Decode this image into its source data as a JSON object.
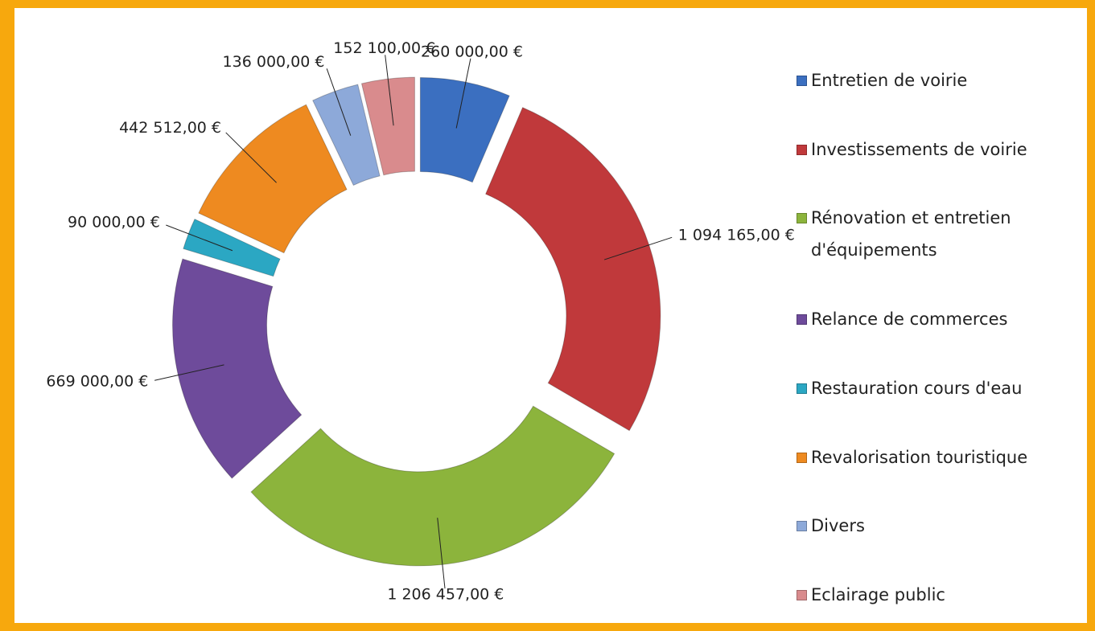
{
  "chart_data": {
    "type": "donut",
    "categories": [
      "Entretien de voirie",
      "Investissements de voirie",
      "Rénovation et entretien d'équipements",
      "Relance de commerces",
      "Restauration cours d'eau",
      "Revalorisation touristique",
      "Divers",
      "Eclairage public"
    ],
    "values": [
      260000,
      1094165,
      1206457,
      669000,
      90000,
      442512,
      136000,
      152100
    ],
    "value_labels": [
      "260 000,00 €",
      "1 094 165,00 €",
      "1 206 457,00 €",
      "669 000,00 €",
      "90 000,00 €",
      "442 512,00 €",
      "136 000,00 €",
      "152 100,00 €"
    ],
    "colors": [
      "#3b6fc0",
      "#c0393b",
      "#8cb43c",
      "#6e4b9b",
      "#2ba7c3",
      "#ee8a20",
      "#8da9d9",
      "#d98b8d"
    ],
    "legend": "right"
  }
}
